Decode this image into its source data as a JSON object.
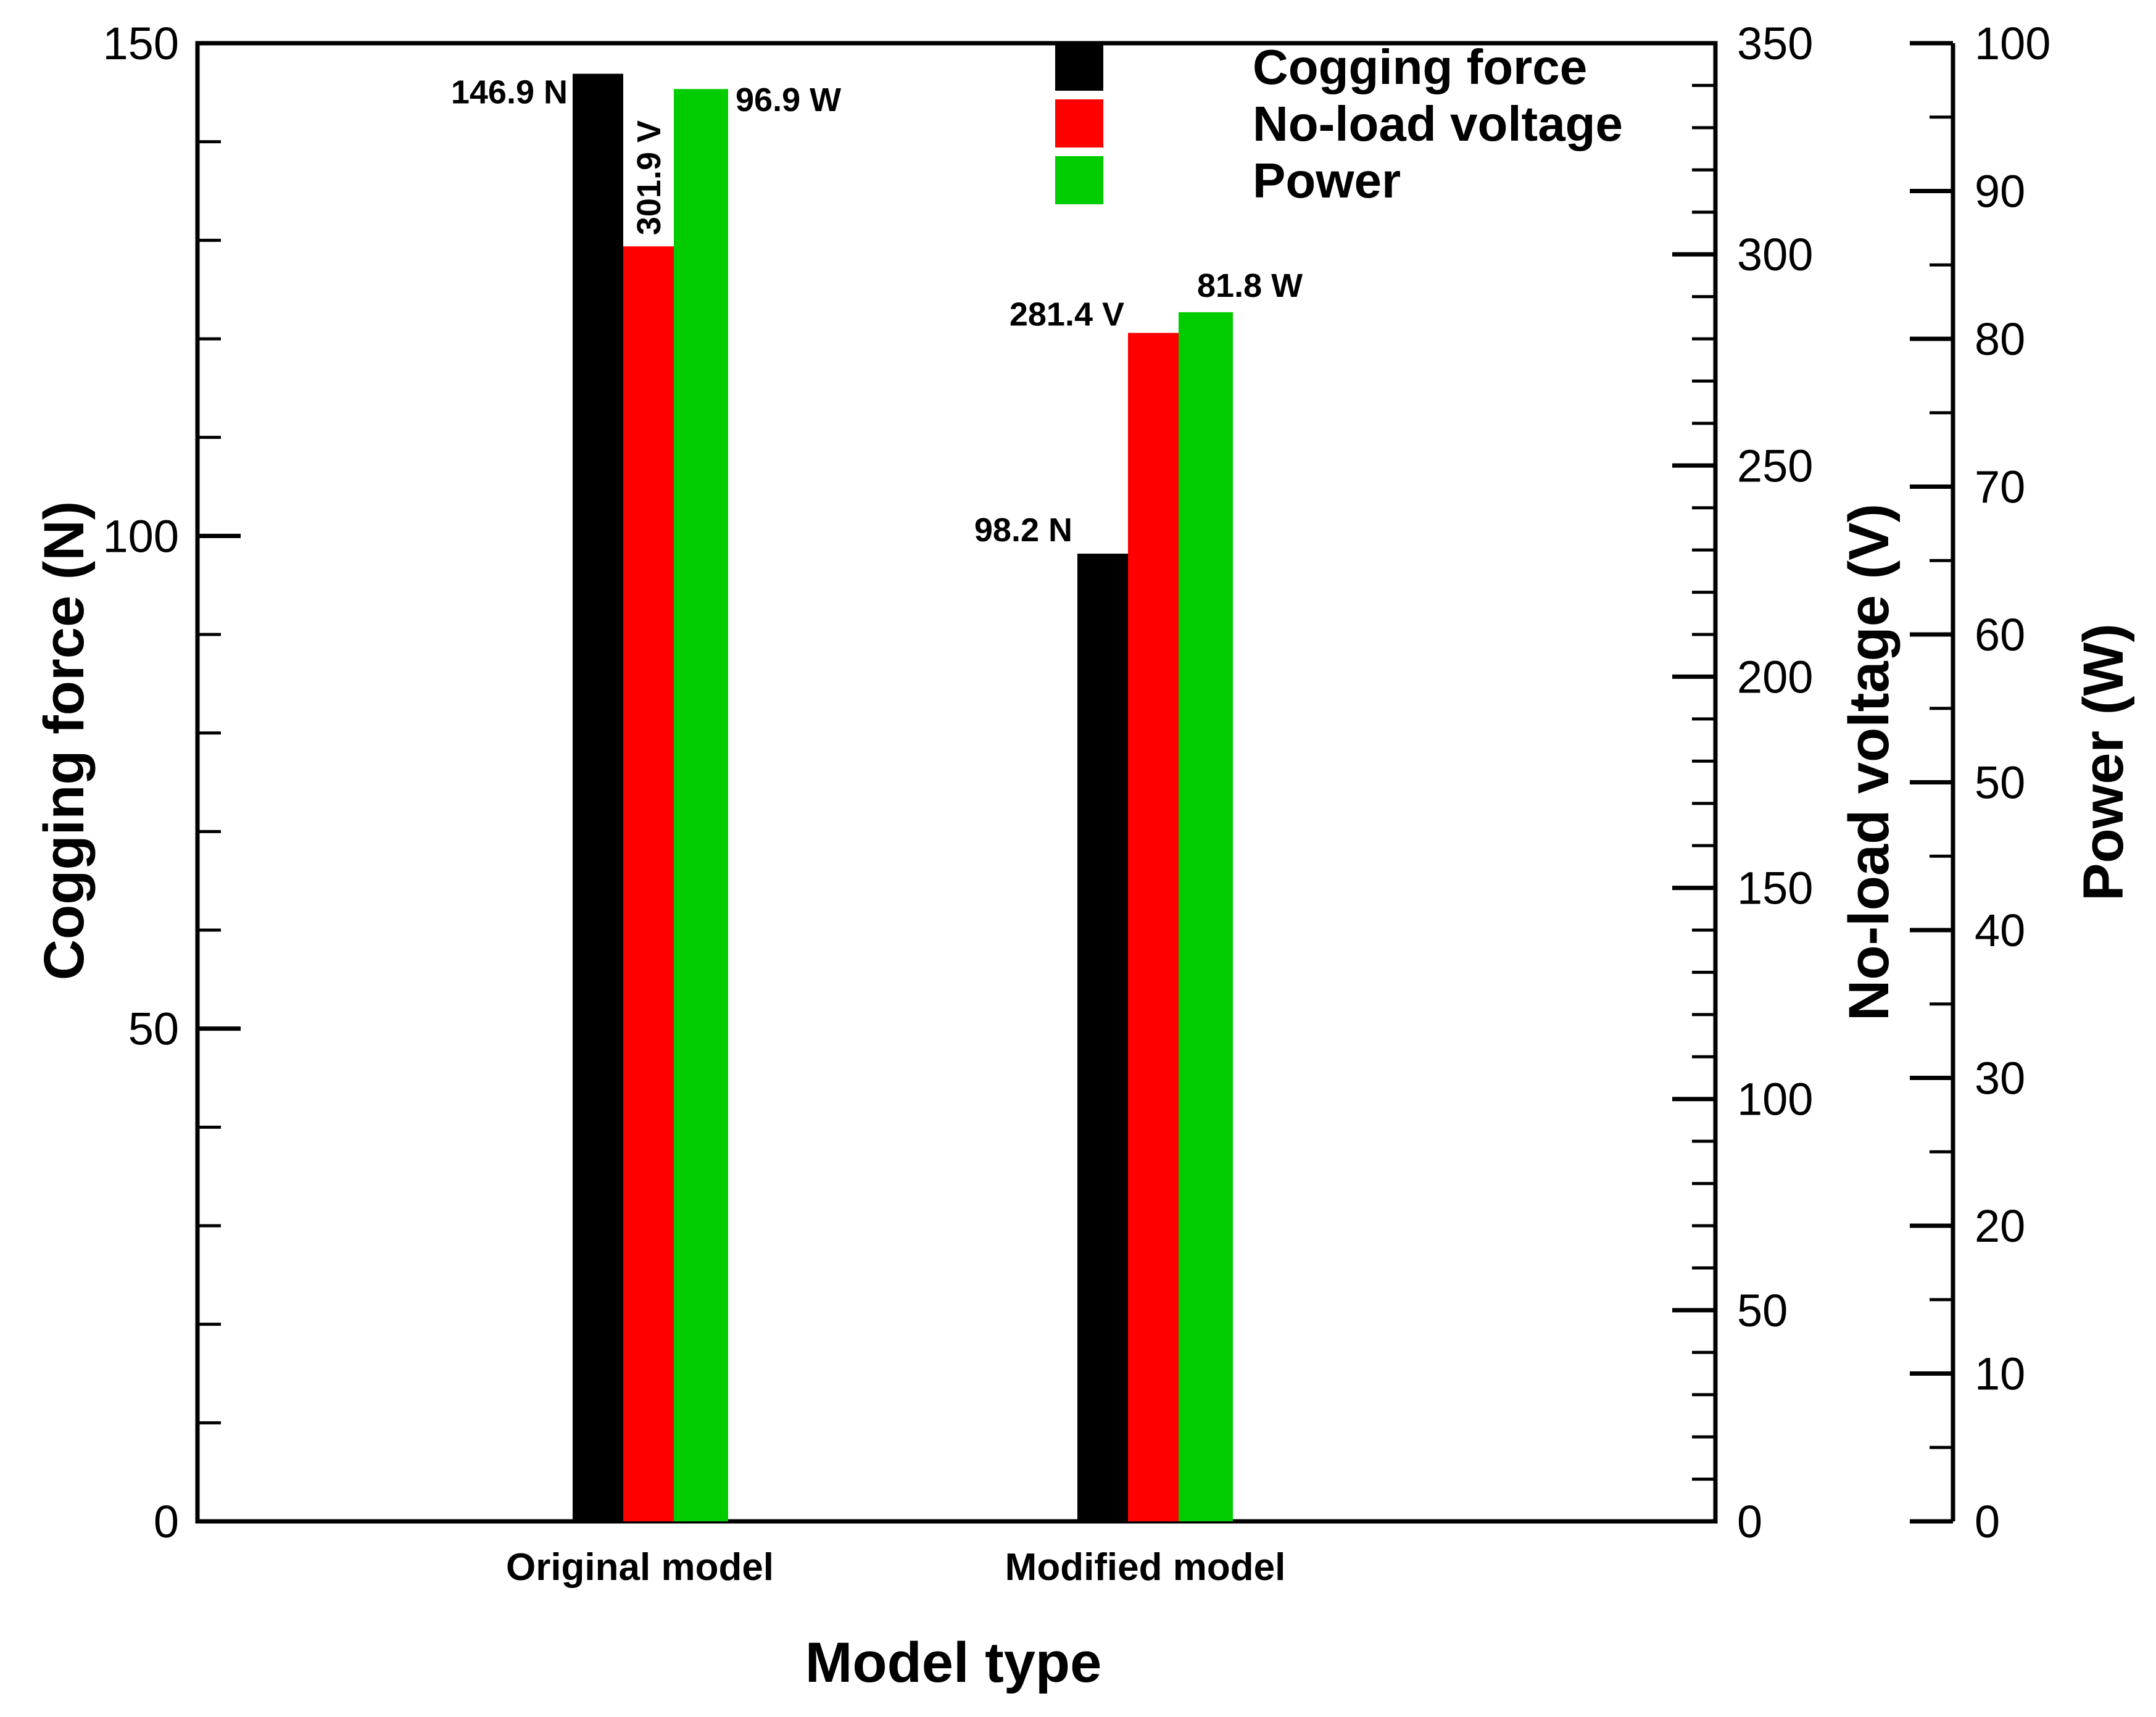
{
  "chart_data": {
    "type": "bar",
    "xlabel": "Model type",
    "categories": [
      "Original model",
      "Modified model"
    ],
    "axes": {
      "left": {
        "label": "Cogging force (N)",
        "ylim": [
          0,
          150
        ],
        "major_ticks": [
          0,
          50,
          100,
          150
        ],
        "minor_step": 10
      },
      "right1": {
        "label": "No-load voltage (V)",
        "ylim": [
          0,
          350
        ],
        "major_ticks": [
          0,
          50,
          100,
          150,
          200,
          250,
          300,
          350
        ],
        "minor_step": 10
      },
      "right2": {
        "label": "Power (W)",
        "ylim": [
          0,
          100
        ],
        "major_ticks": [
          0,
          10,
          20,
          30,
          40,
          50,
          60,
          70,
          80,
          90,
          100
        ],
        "minor_step": 5
      }
    },
    "series": [
      {
        "name": "Cogging force",
        "axis": "left",
        "color": "#000000",
        "values": [
          146.9,
          98.2
        ],
        "labels": [
          "146.9 N",
          "98.2 N"
        ]
      },
      {
        "name": "No-load voltage",
        "axis": "right1",
        "color": "#ff0000",
        "values": [
          301.9,
          281.4
        ],
        "labels": [
          "301.9 V",
          "281.4 V"
        ]
      },
      {
        "name": "Power",
        "axis": "right2",
        "color": "#00cc00",
        "values": [
          96.9,
          81.8
        ],
        "labels": [
          "96.9 W",
          "81.8 W"
        ]
      }
    ],
    "legend": {
      "position": "top-center"
    }
  }
}
